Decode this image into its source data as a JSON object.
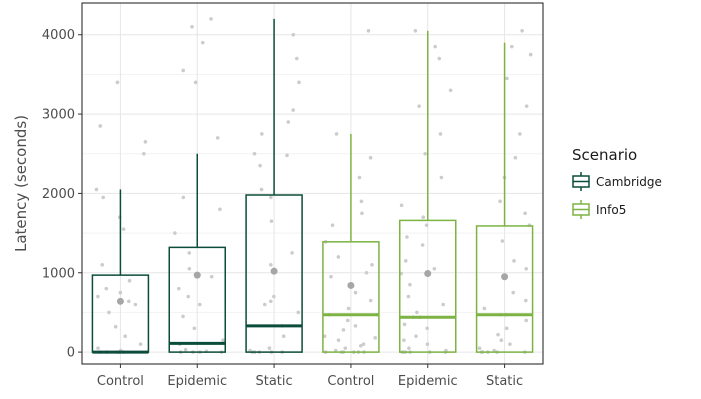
{
  "chart_data": {
    "type": "box",
    "ylabel": "Latency (seconds)",
    "xlabel": "",
    "ylim": [
      -150,
      4400
    ],
    "yticks": [
      0,
      1000,
      2000,
      3000,
      4000
    ],
    "categories": [
      "Control",
      "Epidemic",
      "Static",
      "Control",
      "Epidemic",
      "Static"
    ],
    "legend": {
      "title": "Scenario",
      "position": "right",
      "entries": [
        {
          "name": "Cambridge",
          "color": "#0b4d3a"
        },
        {
          "name": "Info5",
          "color": "#7cb342"
        }
      ]
    },
    "series": [
      {
        "name": "Cambridge",
        "color": "#0b4d3a",
        "boxes": [
          {
            "category": "Control",
            "q1": 0,
            "median": 0,
            "q3": 970,
            "whisker_low": 0,
            "whisker_high": 2050,
            "mean": 640
          },
          {
            "category": "Epidemic",
            "q1": 0,
            "median": 110,
            "q3": 1320,
            "whisker_low": 0,
            "whisker_high": 2500,
            "mean": 970
          },
          {
            "category": "Static",
            "q1": 0,
            "median": 330,
            "q3": 1980,
            "whisker_low": 0,
            "whisker_high": 4200,
            "mean": 1020
          }
        ]
      },
      {
        "name": "Info5",
        "color": "#7cb342",
        "boxes": [
          {
            "category": "Control",
            "q1": 0,
            "median": 470,
            "q3": 1390,
            "whisker_low": 0,
            "whisker_high": 2750,
            "mean": 840
          },
          {
            "category": "Epidemic",
            "q1": 0,
            "median": 440,
            "q3": 1660,
            "whisker_low": 0,
            "whisker_high": 4050,
            "mean": 990
          },
          {
            "category": "Static",
            "q1": 0,
            "median": 470,
            "q3": 1590,
            "whisker_low": 0,
            "whisker_high": 3900,
            "mean": 950
          }
        ]
      }
    ],
    "points": [
      {
        "group": 0,
        "values": [
          0,
          0,
          0,
          0,
          0,
          20,
          50,
          100,
          200,
          320,
          500,
          600,
          640,
          700,
          750,
          800,
          900,
          1100,
          1550,
          1700,
          1950,
          2050,
          2500,
          2650,
          2850,
          3400
        ]
      },
      {
        "group": 1,
        "values": [
          0,
          0,
          0,
          0,
          10,
          30,
          100,
          150,
          300,
          450,
          600,
          700,
          800,
          950,
          1050,
          1250,
          1500,
          1800,
          1950,
          2700,
          3400,
          3550,
          3900,
          4100,
          4200
        ]
      },
      {
        "group": 2,
        "values": [
          0,
          0,
          0,
          0,
          0,
          20,
          50,
          200,
          330,
          500,
          600,
          640,
          700,
          1100,
          1250,
          1650,
          1950,
          2050,
          2350,
          2480,
          2500,
          2750,
          2900,
          3050,
          3400,
          3700,
          4000
        ]
      },
      {
        "group": 3,
        "values": [
          0,
          0,
          0,
          0,
          0,
          0,
          20,
          50,
          80,
          100,
          150,
          180,
          200,
          280,
          330,
          400,
          470,
          470,
          550,
          650,
          750,
          850,
          950,
          1000,
          1100,
          1200,
          1390,
          1600,
          1750,
          1900,
          2200,
          2450,
          2750,
          4050
        ]
      },
      {
        "group": 4,
        "values": [
          0,
          0,
          0,
          0,
          0,
          0,
          20,
          50,
          100,
          150,
          200,
          300,
          350,
          440,
          440,
          500,
          600,
          700,
          850,
          990,
          1050,
          1150,
          1350,
          1450,
          1600,
          1700,
          1850,
          2200,
          2500,
          2750,
          3100,
          3300,
          3700,
          3850,
          4050
        ]
      },
      {
        "group": 5,
        "values": [
          0,
          0,
          0,
          0,
          0,
          0,
          20,
          50,
          100,
          150,
          220,
          300,
          400,
          470,
          470,
          550,
          650,
          750,
          950,
          1050,
          1150,
          1400,
          1600,
          1750,
          1900,
          2200,
          2450,
          2750,
          3100,
          3450,
          3750,
          3850,
          4050
        ]
      }
    ],
    "grid": true,
    "style": {
      "point_color": "#cccccc",
      "mean_color": "#a6a6a6",
      "axis_color": "#1a1a1a",
      "grid_major": "#e6e6e6",
      "grid_minor": "#f2f2f2"
    }
  }
}
